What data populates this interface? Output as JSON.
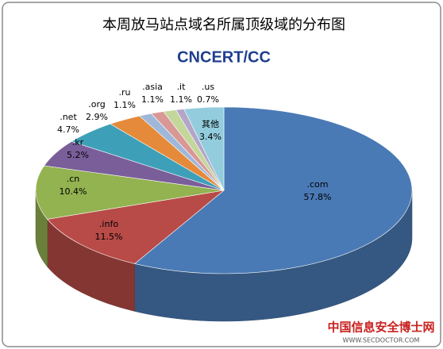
{
  "chart_data": {
    "type": "pie3d",
    "title": "本周放马站点域名所属顶级域的分布图",
    "logo": "CNCERT/CC",
    "watermark": "中国信息安全博士网",
    "watermark_url": "WWW.SECDOCTOR.COM",
    "categories": [
      ".com",
      ".info",
      ".cn",
      ".kr",
      ".net",
      ".org",
      ".ru",
      ".asia",
      ".it",
      ".us",
      "其他"
    ],
    "values": [
      57.8,
      11.5,
      10.4,
      5.2,
      4.7,
      2.9,
      1.1,
      1.1,
      1.1,
      0.7,
      3.4
    ],
    "value_labels": [
      "57.8%",
      "11.5%",
      "10.4%",
      "5.2%",
      "4.7%",
      "2.9%",
      "1.1%",
      "1.1%",
      "1.1%",
      "0.7%",
      "3.4%"
    ],
    "colors": [
      "#4a7ab5",
      "#b84b47",
      "#93b250",
      "#7a5e9a",
      "#3ea0b8",
      "#e58a3a",
      "#9fb8da",
      "#d99795",
      "#c4d79b",
      "#b3a6c9",
      "#93cddd"
    ]
  }
}
